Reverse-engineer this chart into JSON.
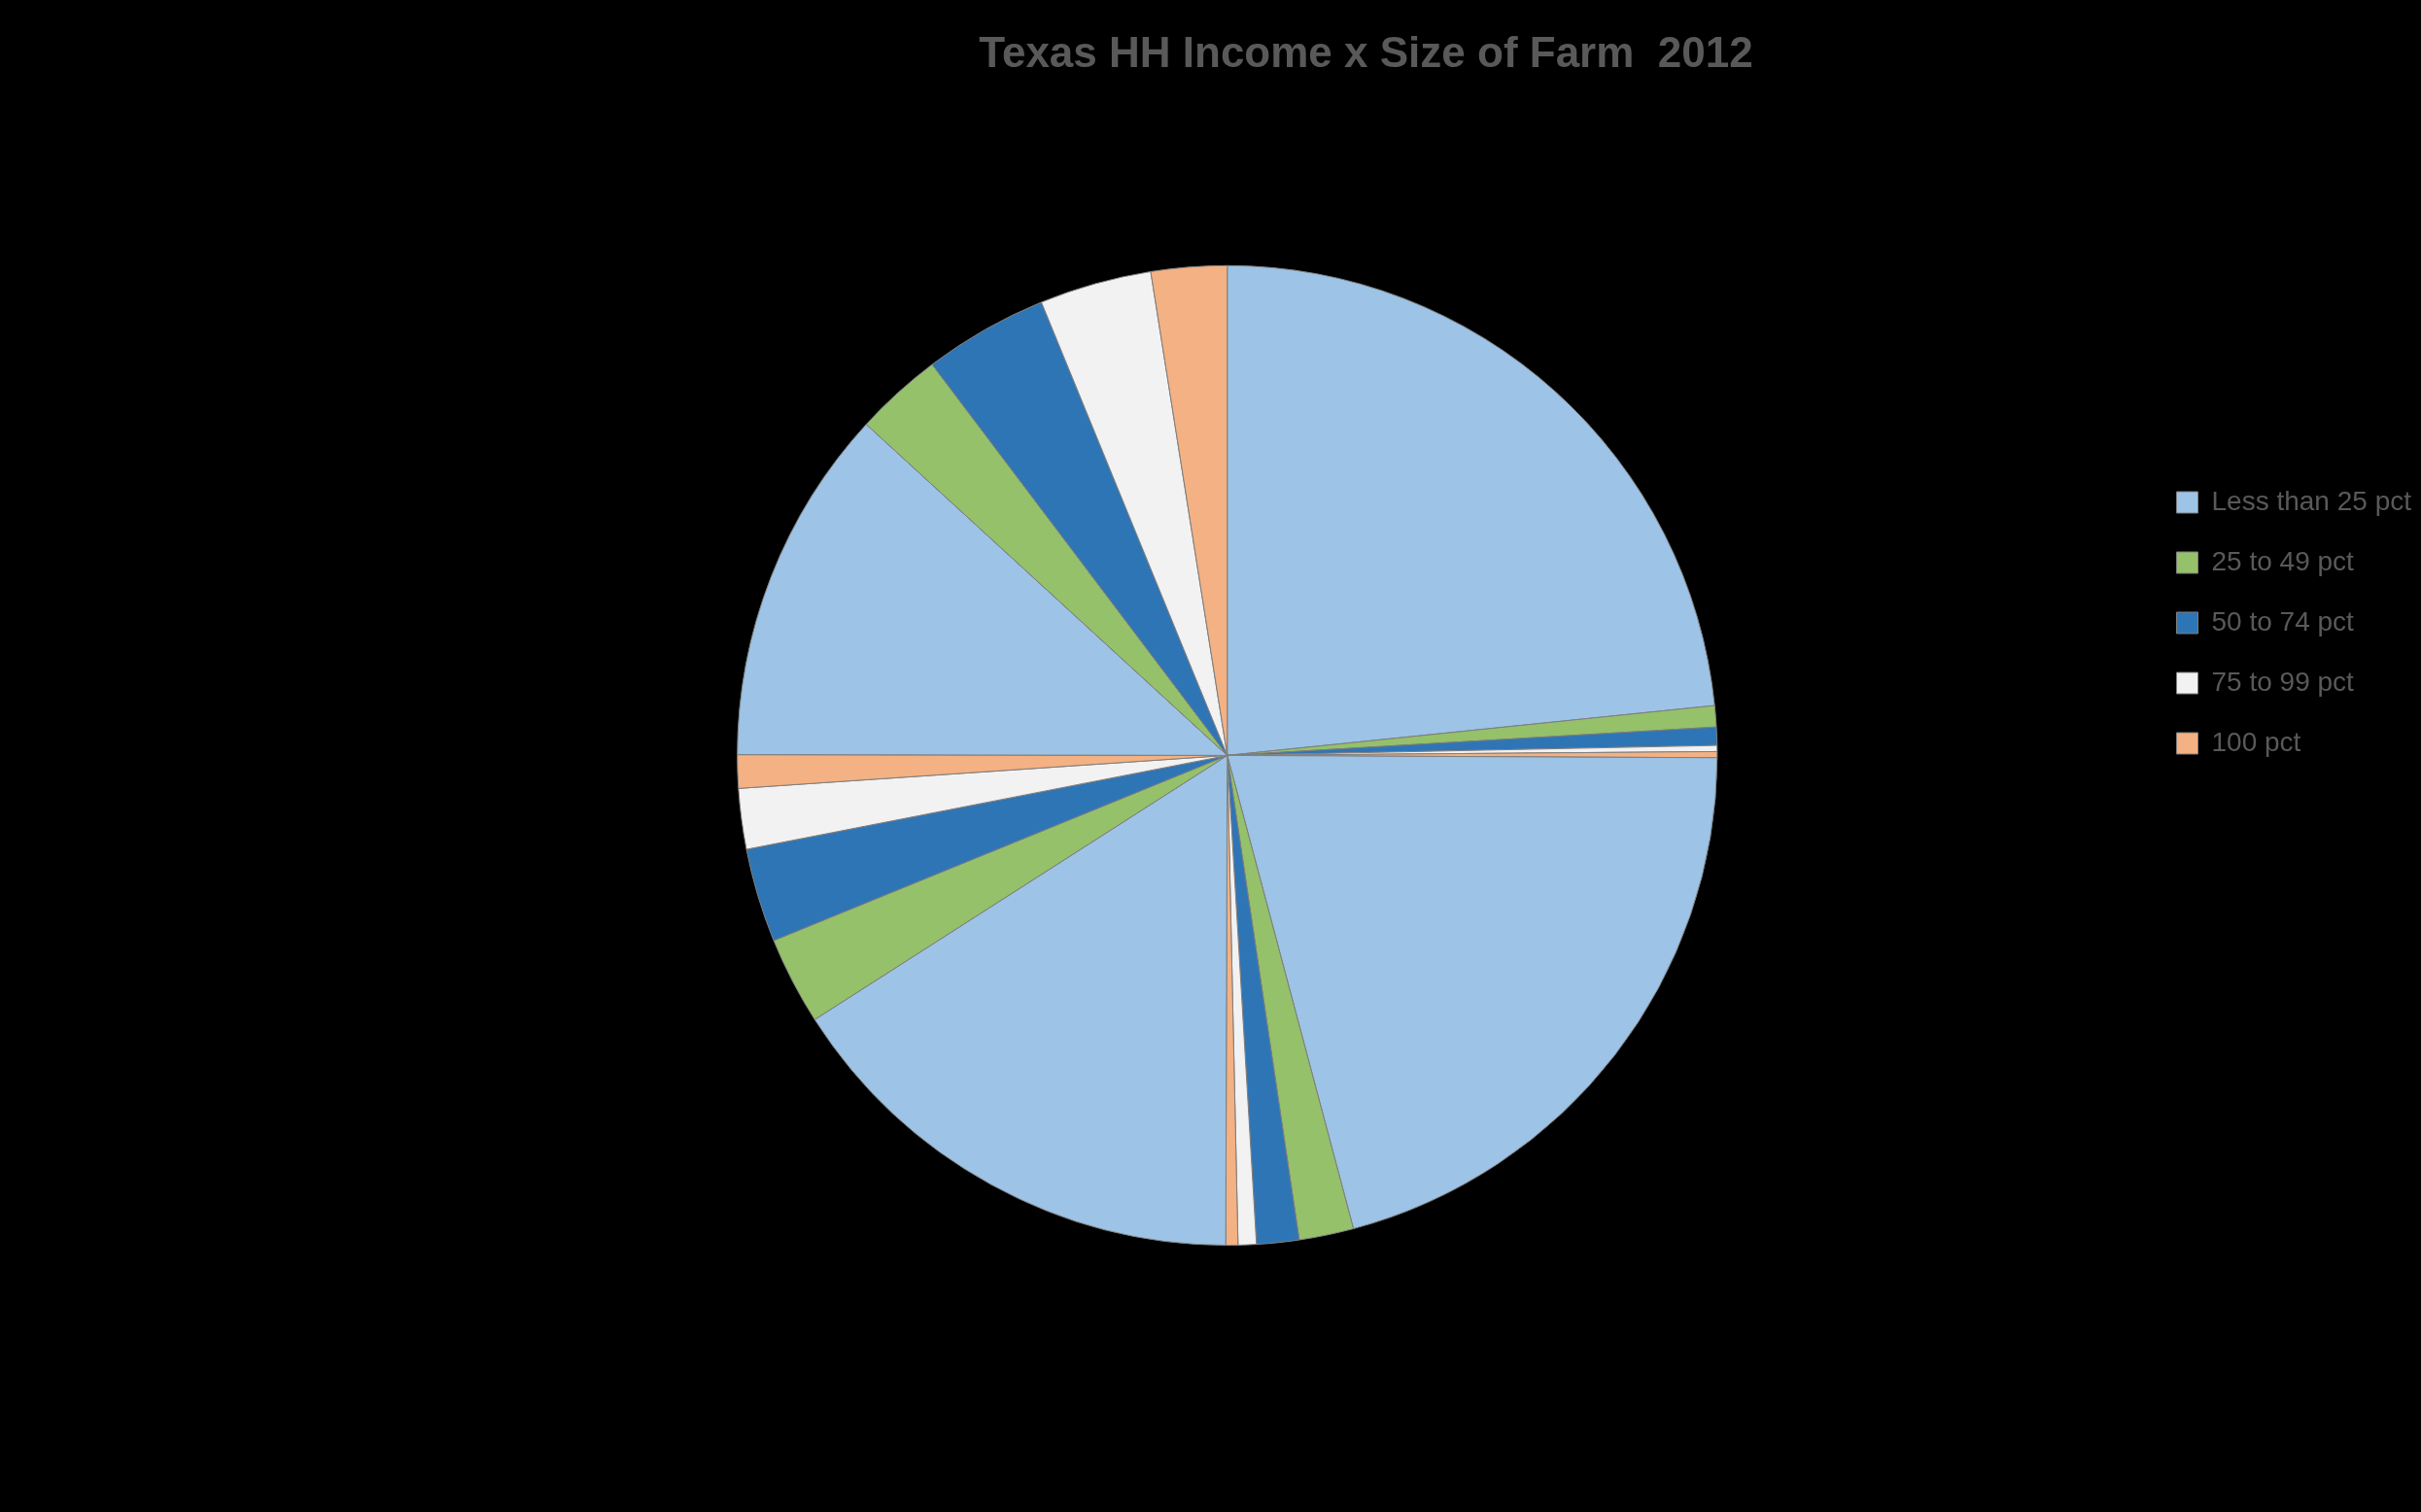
{
  "chart_data": {
    "type": "pie",
    "title": "Texas HH Income x Size of Farm  2012",
    "categories": [
      "Less than 25 pct",
      "25 to 49 pct",
      "50 to 74 pct",
      "75 to 99 pct",
      "100 pct",
      null,
      null,
      null,
      null,
      null,
      null,
      null,
      null,
      null,
      null,
      null,
      null,
      null,
      null,
      null
    ],
    "values": [
      23.4,
      0.7,
      0.6,
      0.2,
      0.2,
      20.8,
      1.8,
      1.4,
      0.6,
      0.4,
      15.9,
      2.9,
      3.1,
      2.0,
      1.1,
      11.8,
      2.9,
      4.1,
      3.7,
      2.5
    ],
    "colors": [
      "#9dc3e6",
      "#95c16a",
      "#2e75b6",
      "#f2f2f2",
      "#f4b183",
      "#9dc3e6",
      "#95c16a",
      "#2e75b6",
      "#f2f2f2",
      "#f4b183",
      "#9dc3e6",
      "#95c16a",
      "#2e75b6",
      "#f2f2f2",
      "#f4b183",
      "#9dc3e6",
      "#95c16a",
      "#2e75b6",
      "#f2f2f2",
      "#f4b183"
    ],
    "legend": "right"
  }
}
